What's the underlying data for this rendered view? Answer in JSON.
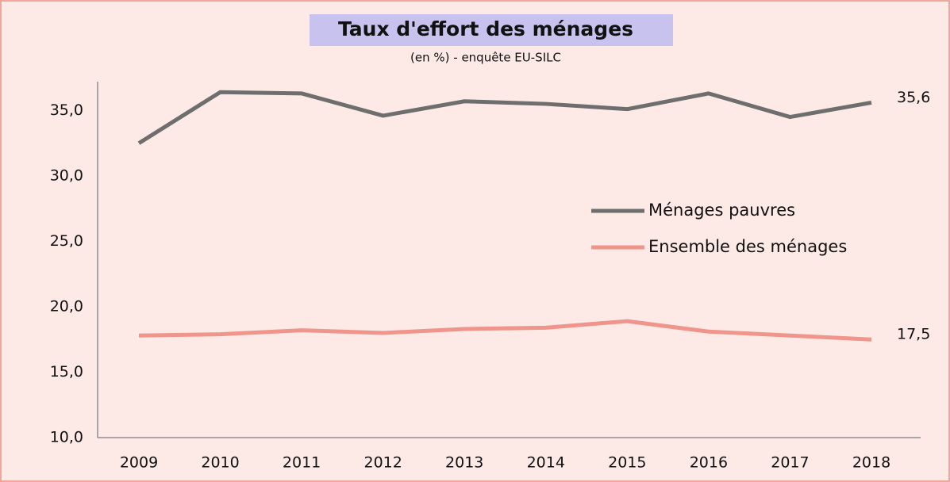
{
  "chart_data": {
    "type": "line",
    "title": "Taux d'effort des ménages",
    "subtitle": "(en %) - enquête EU-SILC",
    "categories": [
      "2009",
      "2010",
      "2011",
      "2012",
      "2013",
      "2014",
      "2015",
      "2016",
      "2017",
      "2018"
    ],
    "series": [
      {
        "name": "Ménages pauvres",
        "color": "#6e6e6e",
        "values": [
          32.5,
          36.4,
          36.3,
          34.6,
          35.7,
          35.5,
          35.1,
          36.3,
          34.5,
          35.6
        ],
        "value_labels": [
          null,
          null,
          null,
          null,
          null,
          null,
          null,
          null,
          null,
          "35,6"
        ]
      },
      {
        "name": "Ensemble des ménages",
        "color": "#f0958b",
        "values": [
          17.8,
          17.9,
          18.2,
          18.0,
          18.3,
          18.4,
          18.9,
          18.1,
          17.8,
          17.5
        ],
        "value_labels": [
          null,
          null,
          null,
          null,
          null,
          null,
          null,
          null,
          null,
          "17,5"
        ]
      }
    ],
    "ylim": [
      10,
      37.2
    ],
    "yticks": [
      {
        "value": 10,
        "label": "10,0"
      },
      {
        "value": 15,
        "label": "15,0"
      },
      {
        "value": 20,
        "label": "20,0"
      },
      {
        "value": 25,
        "label": "25,0"
      },
      {
        "value": 30,
        "label": "30,0"
      },
      {
        "value": 35,
        "label": "35,0"
      }
    ],
    "grid": false,
    "legend_position": "right"
  }
}
